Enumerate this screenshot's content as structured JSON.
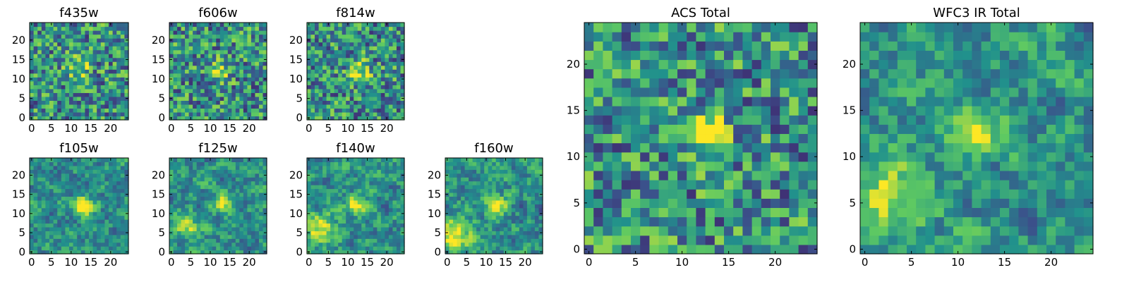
{
  "figure": {
    "colormap": [
      "#440154",
      "#3b528b",
      "#21918c",
      "#5ec962",
      "#fde725"
    ]
  },
  "chart_data": [
    {
      "type": "heatmap",
      "title": "f435w",
      "grid_size": 25,
      "colormap": "viridis",
      "xticks": [
        "0",
        "5",
        "10",
        "15",
        "20"
      ],
      "yticks": [
        "0",
        "5",
        "10",
        "15",
        "20"
      ],
      "xlim": [
        0,
        24
      ],
      "ylim": [
        0,
        24
      ],
      "blobs": [
        {
          "x": 12,
          "y": 13,
          "amp": 0.35,
          "sigma": 2.0
        }
      ]
    },
    {
      "type": "heatmap",
      "title": "f606w",
      "grid_size": 25,
      "colormap": "viridis",
      "xticks": [
        "0",
        "5",
        "10",
        "15",
        "20"
      ],
      "yticks": [
        "0",
        "5",
        "10",
        "15",
        "20"
      ],
      "xlim": [
        0,
        24
      ],
      "ylim": [
        0,
        24
      ],
      "blobs": [
        {
          "x": 12,
          "y": 12,
          "amp": 0.5,
          "sigma": 1.6
        }
      ]
    },
    {
      "type": "heatmap",
      "title": "f814w",
      "grid_size": 25,
      "colormap": "viridis",
      "xticks": [
        "0",
        "5",
        "10",
        "15",
        "20"
      ],
      "yticks": [
        "0",
        "5",
        "10",
        "15",
        "20"
      ],
      "xlim": [
        0,
        24
      ],
      "ylim": [
        0,
        24
      ],
      "blobs": [
        {
          "x": 13,
          "y": 12,
          "amp": 0.45,
          "sigma": 1.8
        }
      ]
    },
    {
      "type": "heatmap",
      "title": "f105w",
      "grid_size": 25,
      "colormap": "viridis",
      "xticks": [
        "0",
        "5",
        "10",
        "15",
        "20"
      ],
      "yticks": [
        "0",
        "5",
        "10",
        "15",
        "20"
      ],
      "xlim": [
        0,
        24
      ],
      "ylim": [
        0,
        24
      ],
      "blobs": [
        {
          "x": 13,
          "y": 12,
          "amp": 0.7,
          "sigma": 1.5
        }
      ]
    },
    {
      "type": "heatmap",
      "title": "f125w",
      "grid_size": 25,
      "colormap": "viridis",
      "xticks": [
        "0",
        "5",
        "10",
        "15",
        "20"
      ],
      "yticks": [
        "0",
        "5",
        "10",
        "15",
        "20"
      ],
      "xlim": [
        0,
        24
      ],
      "ylim": [
        0,
        24
      ],
      "blobs": [
        {
          "x": 13,
          "y": 13,
          "amp": 0.5,
          "sigma": 1.6
        },
        {
          "x": 4,
          "y": 7,
          "amp": 0.35,
          "sigma": 2.5
        }
      ]
    },
    {
      "type": "heatmap",
      "title": "f140w",
      "grid_size": 25,
      "colormap": "viridis",
      "xticks": [
        "0",
        "5",
        "10",
        "15",
        "20"
      ],
      "yticks": [
        "0",
        "5",
        "10",
        "15",
        "20"
      ],
      "xlim": [
        0,
        24
      ],
      "ylim": [
        0,
        24
      ],
      "blobs": [
        {
          "x": 12,
          "y": 12,
          "amp": 0.45,
          "sigma": 1.8
        },
        {
          "x": 3,
          "y": 6,
          "amp": 0.4,
          "sigma": 3.0
        }
      ]
    },
    {
      "type": "heatmap",
      "title": "f160w",
      "grid_size": 25,
      "colormap": "viridis",
      "xticks": [
        "0",
        "5",
        "10",
        "15",
        "20"
      ],
      "yticks": [
        "0",
        "5",
        "10",
        "15",
        "20"
      ],
      "xlim": [
        0,
        24
      ],
      "ylim": [
        0,
        24
      ],
      "blobs": [
        {
          "x": 13,
          "y": 12,
          "amp": 0.45,
          "sigma": 1.8
        },
        {
          "x": 2,
          "y": 5,
          "amp": 0.5,
          "sigma": 3.0
        }
      ]
    },
    {
      "type": "heatmap",
      "title": "ACS Total",
      "grid_size": 25,
      "colormap": "viridis",
      "xticks": [
        "0",
        "5",
        "10",
        "15",
        "20"
      ],
      "yticks": [
        "0",
        "5",
        "10",
        "15",
        "20"
      ],
      "xlim": [
        0,
        24
      ],
      "ylim": [
        0,
        24
      ],
      "blobs": [
        {
          "x": 12.5,
          "y": 12.5,
          "amp": 0.55,
          "sigma": 1.7
        }
      ]
    },
    {
      "type": "heatmap",
      "title": "WFC3 IR Total",
      "grid_size": 25,
      "colormap": "viridis",
      "xticks": [
        "0",
        "5",
        "10",
        "15",
        "20"
      ],
      "yticks": [
        "0",
        "5",
        "10",
        "15",
        "20"
      ],
      "xlim": [
        0,
        24
      ],
      "ylim": [
        0,
        24
      ],
      "blobs": [
        {
          "x": 12,
          "y": 13,
          "amp": 0.6,
          "sigma": 1.8
        },
        {
          "x": 2,
          "y": 6,
          "amp": 0.35,
          "sigma": 3.0
        }
      ]
    }
  ]
}
